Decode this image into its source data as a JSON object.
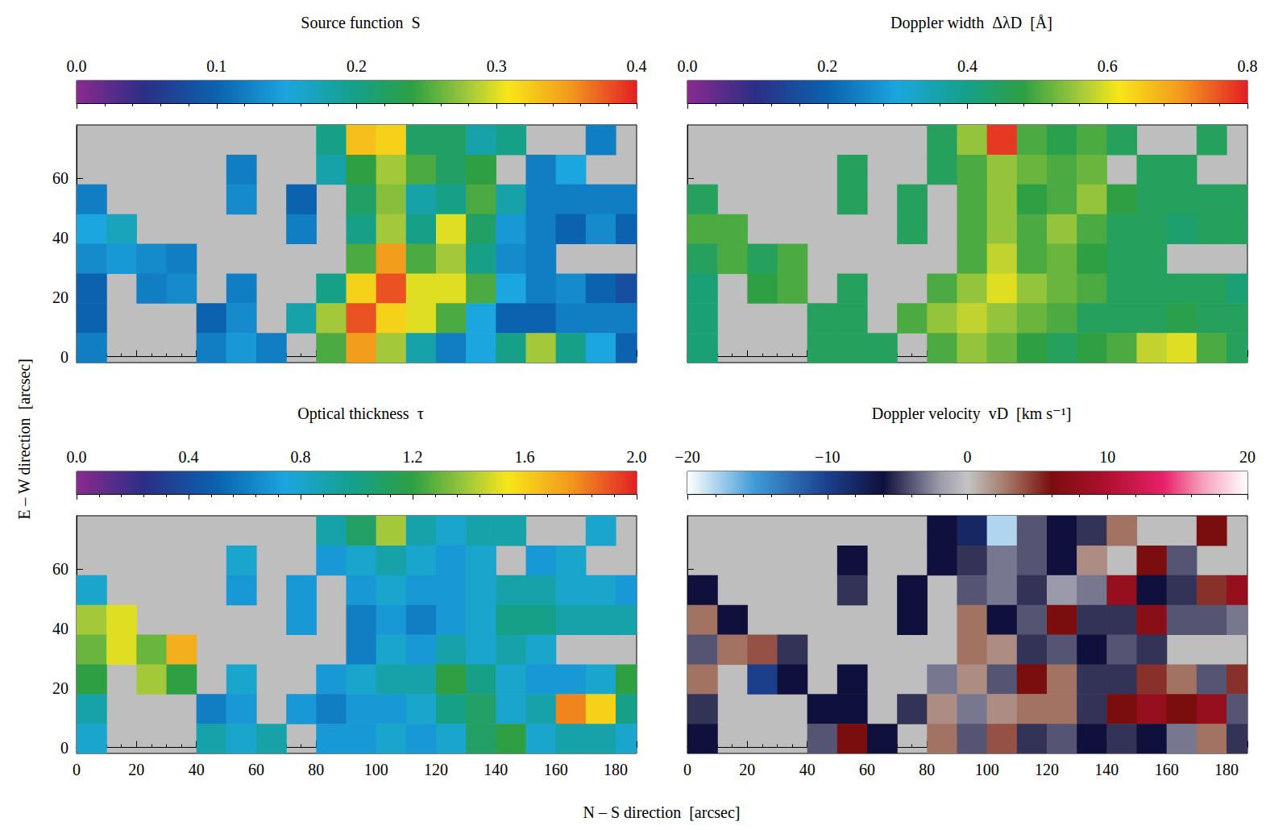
{
  "chart_data": [
    {
      "type": "heatmap",
      "title": "Source function  S",
      "color": "rainbow",
      "ylabel": "E – W direction  [arcsec]",
      "colorbar_lim": [
        0,
        0.4
      ],
      "colorbar_ticks": [
        {
          "value": 0,
          "label": "0.0"
        },
        0.1,
        0.2,
        0.3,
        0.4
      ],
      "xlim": [
        0,
        187
      ],
      "ylim": [
        -2,
        78
      ],
      "xticks": [
        0,
        20,
        40,
        60,
        80,
        100,
        120,
        140,
        160,
        180
      ],
      "yticks": [
        0,
        20,
        40,
        60
      ],
      "tick_labels": "y",
      "grid": false,
      "x": [
        5,
        15,
        25,
        35,
        45,
        55,
        65,
        75,
        85,
        95,
        105,
        115,
        125,
        135,
        145,
        155,
        165,
        175,
        185
      ],
      "y": [
        73,
        63,
        53,
        43,
        33,
        23,
        13,
        3
      ],
      "cells": [
        [
          null,
          null,
          null,
          null,
          null,
          null,
          null,
          null,
          0.2,
          0.33,
          0.32,
          0.22,
          0.22,
          0.18,
          0.2,
          null,
          null,
          0.12,
          null
        ],
        [
          null,
          null,
          null,
          null,
          null,
          0.12,
          null,
          null,
          0.18,
          0.24,
          0.28,
          0.25,
          0.22,
          0.24,
          null,
          0.12,
          0.15,
          null,
          null
        ],
        [
          0.12,
          null,
          null,
          null,
          null,
          0.13,
          null,
          0.1,
          null,
          0.22,
          0.27,
          0.18,
          0.2,
          0.25,
          0.18,
          0.12,
          0.12,
          0.12,
          0.12
        ],
        [
          0.15,
          0.17,
          null,
          null,
          null,
          null,
          null,
          0.12,
          null,
          0.2,
          0.28,
          0.2,
          0.3,
          0.22,
          0.14,
          0.12,
          0.1,
          0.13,
          0.1
        ],
        [
          0.13,
          0.14,
          0.13,
          0.12,
          null,
          null,
          null,
          null,
          null,
          0.25,
          0.35,
          0.25,
          0.28,
          0.2,
          0.13,
          0.12,
          null,
          null,
          null
        ],
        [
          0.1,
          null,
          0.12,
          0.13,
          null,
          0.12,
          null,
          null,
          0.2,
          0.32,
          0.38,
          0.3,
          0.3,
          0.25,
          0.15,
          0.12,
          0.13,
          0.1,
          0.08
        ],
        [
          0.1,
          null,
          null,
          null,
          0.1,
          0.13,
          null,
          0.18,
          0.28,
          0.38,
          0.32,
          0.3,
          0.25,
          0.15,
          0.1,
          0.1,
          0.12,
          0.12,
          0.12
        ],
        [
          0.12,
          null,
          null,
          null,
          0.12,
          0.14,
          0.12,
          null,
          0.25,
          0.35,
          0.28,
          0.18,
          0.12,
          0.15,
          0.2,
          0.28,
          0.2,
          0.15,
          0.1
        ]
      ]
    },
    {
      "type": "heatmap",
      "title": "Doppler width  ΔλD  [Å]",
      "color": "rainbow",
      "colorbar_lim": [
        0,
        0.8
      ],
      "colorbar_ticks": [
        {
          "value": 0,
          "label": "0.0"
        },
        0.2,
        0.4,
        0.6,
        0.8
      ],
      "xlim": [
        0,
        187
      ],
      "ylim": [
        -2,
        78
      ],
      "xticks": [
        0,
        20,
        40,
        60,
        80,
        100,
        120,
        140,
        160,
        180
      ],
      "yticks": [
        0,
        20,
        40,
        60
      ],
      "tick_labels": false,
      "grid": false,
      "x": [
        5,
        15,
        25,
        35,
        45,
        55,
        65,
        75,
        85,
        95,
        105,
        115,
        125,
        135,
        145,
        155,
        165,
        175,
        185
      ],
      "y": [
        73,
        63,
        53,
        43,
        33,
        23,
        13,
        3
      ],
      "cells": [
        [
          null,
          null,
          null,
          null,
          null,
          null,
          null,
          null,
          0.45,
          0.55,
          0.78,
          0.5,
          0.47,
          0.5,
          0.45,
          null,
          null,
          0.45,
          null
        ],
        [
          null,
          null,
          null,
          null,
          null,
          0.45,
          null,
          null,
          0.45,
          0.5,
          0.55,
          0.52,
          0.5,
          0.52,
          null,
          0.45,
          0.45,
          null,
          null
        ],
        [
          0.45,
          null,
          null,
          null,
          null,
          0.45,
          null,
          0.45,
          null,
          0.5,
          0.55,
          0.48,
          0.5,
          0.55,
          0.48,
          0.45,
          0.45,
          0.45,
          0.45
        ],
        [
          0.5,
          0.5,
          null,
          null,
          null,
          null,
          null,
          0.45,
          null,
          0.5,
          0.55,
          0.5,
          0.55,
          0.5,
          0.45,
          0.45,
          0.43,
          0.45,
          0.45
        ],
        [
          0.45,
          0.5,
          0.45,
          0.5,
          null,
          null,
          null,
          null,
          null,
          0.5,
          0.58,
          0.5,
          0.52,
          0.48,
          0.45,
          0.45,
          null,
          null,
          null
        ],
        [
          0.42,
          null,
          0.48,
          0.5,
          null,
          0.45,
          null,
          null,
          0.5,
          0.55,
          0.6,
          0.55,
          0.52,
          0.5,
          0.45,
          0.45,
          0.45,
          0.45,
          0.42
        ],
        [
          0.42,
          null,
          null,
          null,
          0.45,
          0.45,
          null,
          0.5,
          0.55,
          0.58,
          0.55,
          0.52,
          0.5,
          0.45,
          0.45,
          0.45,
          0.47,
          0.45,
          0.45
        ],
        [
          0.42,
          null,
          null,
          null,
          0.45,
          0.45,
          0.45,
          null,
          0.5,
          0.55,
          0.52,
          0.48,
          0.45,
          0.48,
          0.5,
          0.58,
          0.6,
          0.5,
          0.45
        ]
      ]
    },
    {
      "type": "heatmap",
      "title": "Optical thickness  τ",
      "color": "rainbow",
      "xlabel": "N – S direction  [arcsec]",
      "colorbar_lim": [
        0,
        2
      ],
      "colorbar_ticks": [
        {
          "value": 0,
          "label": "0.0"
        },
        0.4,
        0.8,
        1.2,
        1.6,
        {
          "value": 2,
          "label": "2.0"
        }
      ],
      "xlim": [
        0,
        187
      ],
      "ylim": [
        -2,
        78
      ],
      "xticks": [
        0,
        20,
        40,
        60,
        80,
        100,
        120,
        140,
        160,
        180
      ],
      "yticks": [
        0,
        20,
        40,
        60
      ],
      "tick_labels": true,
      "grid": false,
      "x": [
        5,
        15,
        25,
        35,
        45,
        55,
        65,
        75,
        85,
        95,
        105,
        115,
        125,
        135,
        145,
        155,
        165,
        175,
        185
      ],
      "y": [
        73,
        63,
        53,
        43,
        33,
        23,
        13,
        3
      ],
      "cells": [
        [
          null,
          null,
          null,
          null,
          null,
          null,
          null,
          null,
          0.9,
          1.1,
          1.4,
          0.9,
          0.8,
          0.9,
          0.9,
          null,
          null,
          0.8,
          null
        ],
        [
          null,
          null,
          null,
          null,
          null,
          0.8,
          null,
          null,
          0.7,
          0.8,
          0.9,
          0.8,
          0.7,
          0.8,
          null,
          0.7,
          0.8,
          null,
          null
        ],
        [
          0.8,
          null,
          null,
          null,
          null,
          0.7,
          null,
          0.7,
          null,
          0.7,
          0.8,
          0.7,
          0.7,
          0.8,
          0.9,
          0.9,
          0.8,
          0.8,
          0.7
        ],
        [
          1.4,
          1.5,
          null,
          null,
          null,
          null,
          null,
          0.7,
          null,
          0.6,
          0.7,
          0.6,
          0.7,
          0.8,
          1.0,
          1.0,
          0.9,
          0.9,
          0.9
        ],
        [
          1.3,
          1.5,
          1.3,
          1.7,
          null,
          null,
          null,
          null,
          null,
          0.6,
          0.8,
          0.7,
          0.9,
          0.8,
          0.9,
          0.8,
          null,
          null,
          null
        ],
        [
          1.2,
          null,
          1.4,
          1.2,
          null,
          0.8,
          null,
          null,
          0.7,
          0.8,
          0.9,
          0.9,
          1.2,
          1.0,
          0.8,
          0.7,
          0.7,
          0.8,
          1.2
        ],
        [
          0.9,
          null,
          null,
          null,
          0.6,
          0.7,
          null,
          0.7,
          0.6,
          0.7,
          0.7,
          0.8,
          1.0,
          1.1,
          0.8,
          0.9,
          1.8,
          1.6,
          1.0
        ],
        [
          0.8,
          null,
          null,
          null,
          0.9,
          0.8,
          0.9,
          null,
          0.7,
          0.7,
          0.8,
          0.7,
          0.8,
          1.1,
          1.2,
          0.8,
          0.9,
          0.9,
          0.8
        ]
      ]
    },
    {
      "type": "heatmap",
      "title": "Doppler velocity  vD  [km s⁻¹]",
      "color": "diverging",
      "colorbar_lim": [
        -20,
        20
      ],
      "colorbar_ticks": [
        {
          "value": -20,
          "label": "−20"
        },
        {
          "value": -10,
          "label": "−10"
        },
        0,
        10,
        20
      ],
      "xlim": [
        0,
        187
      ],
      "ylim": [
        -2,
        78
      ],
      "xticks": [
        0,
        20,
        40,
        60,
        80,
        100,
        120,
        140,
        160,
        180
      ],
      "yticks": [
        0,
        20,
        40,
        60
      ],
      "tick_labels": "x",
      "grid": false,
      "x": [
        5,
        15,
        25,
        35,
        45,
        55,
        65,
        75,
        85,
        95,
        105,
        115,
        125,
        135,
        145,
        155,
        165,
        175,
        185
      ],
      "y": [
        73,
        63,
        53,
        43,
        33,
        23,
        13,
        3
      ],
      "cells": [
        [
          null,
          null,
          null,
          null,
          null,
          null,
          null,
          null,
          -6,
          -8,
          -18,
          -4,
          -6,
          -5,
          3,
          null,
          null,
          6,
          null
        ],
        [
          null,
          null,
          null,
          null,
          null,
          -6,
          null,
          null,
          -6,
          -5,
          -3,
          -4,
          -6,
          2,
          null,
          6,
          -4,
          null,
          null
        ],
        [
          -6,
          null,
          null,
          null,
          null,
          -5,
          null,
          -6,
          null,
          -4,
          -3,
          -5,
          -2,
          -3,
          8,
          -6,
          -5,
          5,
          8
        ],
        [
          3,
          -6,
          null,
          null,
          null,
          null,
          null,
          -6,
          null,
          3,
          -6,
          -4,
          6,
          -5,
          -5,
          7,
          -4,
          -4,
          -3
        ],
        [
          -4,
          3,
          4,
          -5,
          null,
          null,
          null,
          null,
          null,
          3,
          2,
          -5,
          -4,
          -6,
          -4,
          -5,
          null,
          null,
          null
        ],
        [
          3,
          null,
          -10,
          -6,
          null,
          -6,
          null,
          null,
          -3,
          2,
          -4,
          6,
          3,
          -5,
          -5,
          5,
          3,
          -4,
          5
        ],
        [
          -5,
          null,
          null,
          null,
          -6,
          -6,
          null,
          -5,
          2,
          -3,
          2,
          3,
          3,
          -5,
          6,
          8,
          6,
          8,
          -4
        ],
        [
          -6,
          null,
          null,
          null,
          -4,
          6,
          -6,
          null,
          3,
          -4,
          4,
          -5,
          -4,
          -6,
          -5,
          -6,
          -3,
          3,
          -5
        ]
      ]
    }
  ]
}
